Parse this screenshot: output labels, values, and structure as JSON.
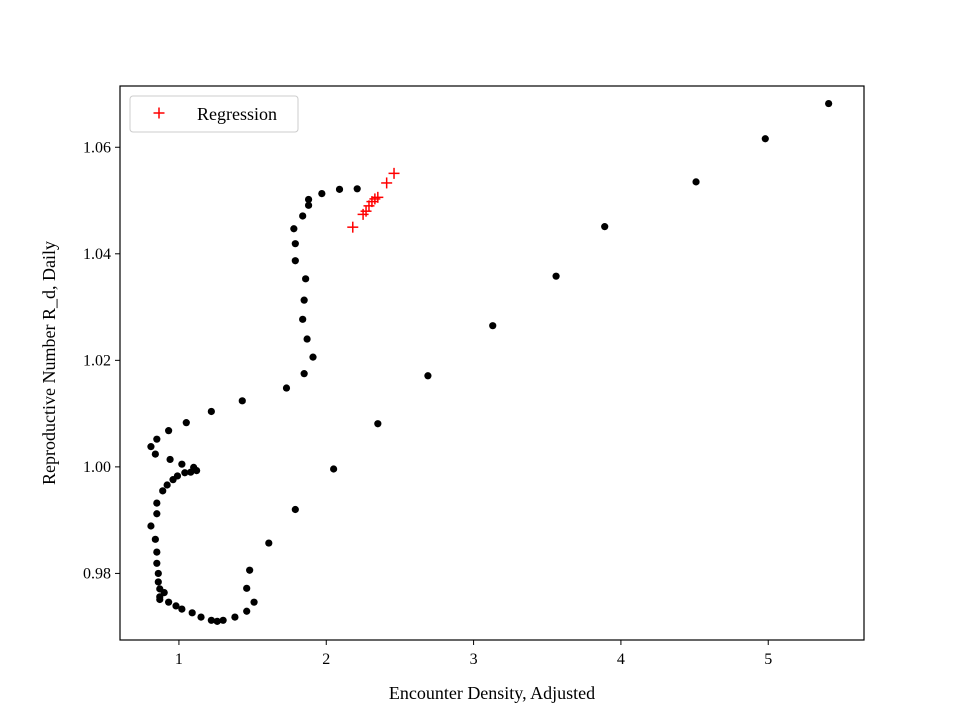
{
  "chart_data": {
    "type": "scatter",
    "title": "",
    "xlabel": "Encounter Density, Adjusted",
    "ylabel": "Reproductive Number R_d, Daily",
    "xlim": [
      0.6,
      5.65
    ],
    "ylim": [
      0.9675,
      1.0715
    ],
    "xticks": [
      {
        "value": 1,
        "label": "1"
      },
      {
        "value": 2,
        "label": "2"
      },
      {
        "value": 3,
        "label": "3"
      },
      {
        "value": 4,
        "label": "4"
      },
      {
        "value": 5,
        "label": "5"
      }
    ],
    "yticks": [
      {
        "value": 0.98,
        "label": "0.98"
      },
      {
        "value": 1.0,
        "label": "1.00"
      },
      {
        "value": 1.02,
        "label": "1.02"
      },
      {
        "value": 1.04,
        "label": "1.04"
      },
      {
        "value": 1.06,
        "label": "1.06"
      }
    ],
    "grid": false,
    "legend": {
      "position": "top-left",
      "entries": [
        {
          "label": "Regression",
          "marker": "+",
          "color": "#ff0000"
        }
      ]
    },
    "series": [
      {
        "marker": "dot",
        "color": "#000000",
        "points": [
          [
            2.21,
            1.0522
          ],
          [
            2.09,
            1.0521
          ],
          [
            1.97,
            1.0513
          ],
          [
            1.88,
            1.0502
          ],
          [
            1.88,
            1.0491
          ],
          [
            1.84,
            1.0471
          ],
          [
            1.78,
            1.0447
          ],
          [
            1.79,
            1.0419
          ],
          [
            1.79,
            1.0387
          ],
          [
            1.86,
            1.0353
          ],
          [
            1.85,
            1.0313
          ],
          [
            1.84,
            1.0277
          ],
          [
            1.87,
            1.024
          ],
          [
            1.91,
            1.0206
          ],
          [
            1.85,
            1.0175
          ],
          [
            1.73,
            1.0148
          ],
          [
            1.43,
            1.0124
          ],
          [
            1.22,
            1.0104
          ],
          [
            1.05,
            1.0083
          ],
          [
            0.93,
            1.0068
          ],
          [
            0.85,
            1.0052
          ],
          [
            0.81,
            1.0038
          ],
          [
            0.84,
            1.0024
          ],
          [
            0.94,
            1.0014
          ],
          [
            1.02,
            1.0005
          ],
          [
            1.1,
            0.9999
          ],
          [
            1.12,
            0.9993
          ],
          [
            1.08,
            0.999
          ],
          [
            1.04,
            0.9989
          ],
          [
            0.99,
            0.9983
          ],
          [
            0.96,
            0.9976
          ],
          [
            0.92,
            0.9966
          ],
          [
            0.89,
            0.9955
          ],
          [
            0.85,
            0.9932
          ],
          [
            0.85,
            0.9912
          ],
          [
            0.81,
            0.9889
          ],
          [
            0.84,
            0.9864
          ],
          [
            0.85,
            0.984
          ],
          [
            0.85,
            0.9819
          ],
          [
            0.86,
            0.98
          ],
          [
            0.86,
            0.9784
          ],
          [
            0.87,
            0.9771
          ],
          [
            0.9,
            0.9764
          ],
          [
            0.87,
            0.9756
          ],
          [
            0.87,
            0.9751
          ],
          [
            0.93,
            0.9746
          ],
          [
            0.98,
            0.9739
          ],
          [
            1.02,
            0.9733
          ],
          [
            1.09,
            0.9726
          ],
          [
            1.15,
            0.9718
          ],
          [
            1.22,
            0.9712
          ],
          [
            1.26,
            0.971
          ],
          [
            1.3,
            0.9712
          ],
          [
            1.38,
            0.9718
          ],
          [
            1.46,
            0.9729
          ],
          [
            1.51,
            0.9746
          ],
          [
            1.46,
            0.9772
          ],
          [
            1.48,
            0.9806
          ],
          [
            1.61,
            0.9857
          ],
          [
            1.79,
            0.992
          ],
          [
            2.05,
            0.9996
          ],
          [
            2.35,
            1.0081
          ],
          [
            2.69,
            1.0171
          ],
          [
            3.13,
            1.0265
          ],
          [
            3.56,
            1.0358
          ],
          [
            3.89,
            1.0451
          ],
          [
            4.51,
            1.0535
          ],
          [
            4.98,
            1.0616
          ],
          [
            5.41,
            1.0682
          ]
        ]
      },
      {
        "name": "Regression",
        "marker": "+",
        "color": "#ff0000",
        "points": [
          [
            2.18,
            1.045
          ],
          [
            2.25,
            1.0474
          ],
          [
            2.27,
            1.048
          ],
          [
            2.29,
            1.049
          ],
          [
            2.31,
            1.0498
          ],
          [
            2.33,
            1.0503
          ],
          [
            2.35,
            1.0506
          ],
          [
            2.41,
            1.0533
          ],
          [
            2.46,
            1.0551
          ]
        ]
      }
    ]
  }
}
